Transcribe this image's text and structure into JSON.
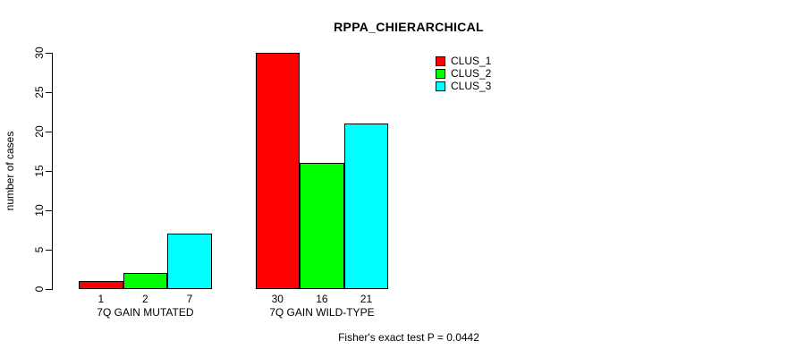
{
  "title": "RPPA_CHIERARCHICAL",
  "footer": "Fisher's exact test P = 0.0442",
  "chart_data": {
    "type": "bar",
    "grouped": true,
    "title": "RPPA_CHIERARCHICAL",
    "categories": [
      "7Q GAIN MUTATED",
      "7Q GAIN WILD-TYPE"
    ],
    "series": [
      {
        "name": "CLUS_1",
        "color": "#ff0000",
        "values": [
          1,
          30
        ]
      },
      {
        "name": "CLUS_2",
        "color": "#00ff00",
        "values": [
          2,
          16
        ]
      },
      {
        "name": "CLUS_3",
        "color": "#00ffff",
        "values": [
          7,
          21
        ]
      }
    ],
    "bar_value_labels": [
      [
        "1",
        "2",
        "7"
      ],
      [
        "30",
        "16",
        "21"
      ]
    ],
    "xlabel": "",
    "ylabel": "number of cases",
    "ylim": [
      0,
      30
    ],
    "yticks": [
      0,
      5,
      10,
      15,
      20,
      25,
      30
    ],
    "grid": false,
    "legend_position": "top-right",
    "annotation": "Fisher's exact test P = 0.0442"
  }
}
